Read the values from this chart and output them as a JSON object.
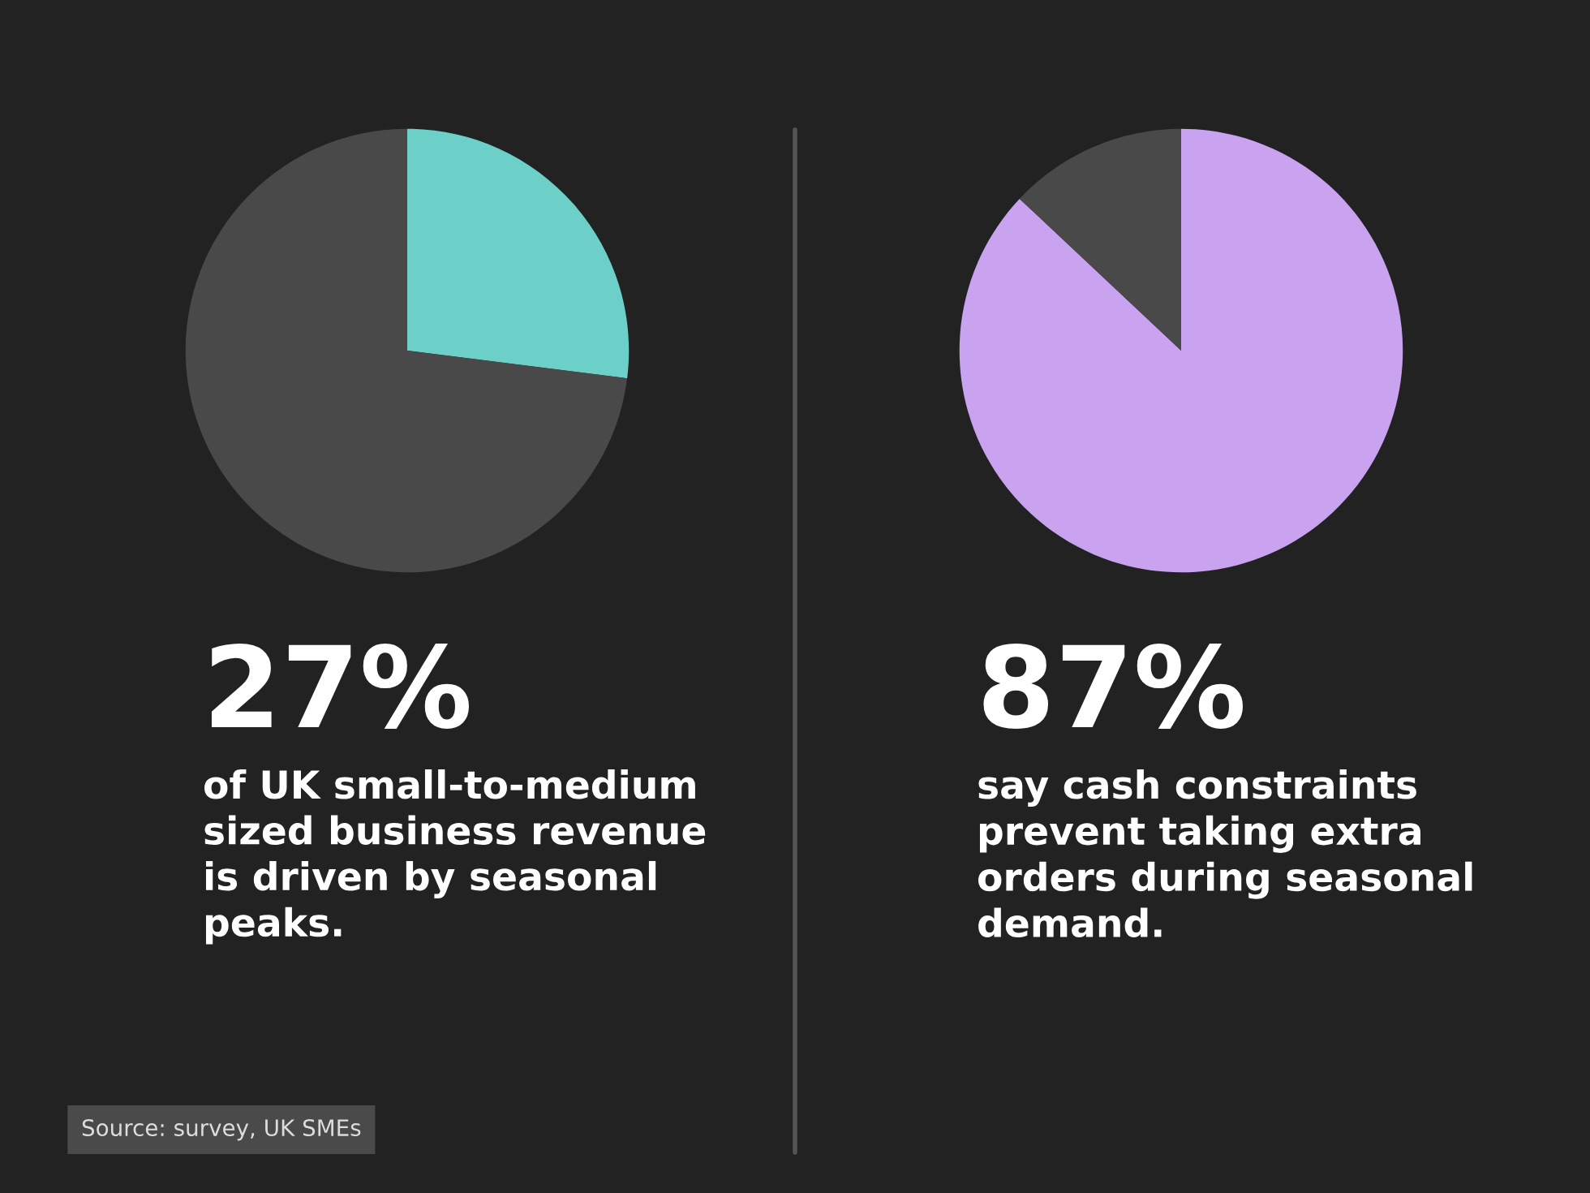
{
  "chart_data": [
    {
      "type": "pie",
      "title": "27%",
      "subtitle": "of UK small-to-medium\nsized business revenue\nis driven by seasonal\npeaks.",
      "categories": [
        null,
        null
      ],
      "values": [
        27,
        73
      ],
      "colors": [
        "#6ccfc8",
        "#494949"
      ],
      "legend": false,
      "annotations": [
        "Source: survey, UK SMEs"
      ]
    },
    {
      "type": "pie",
      "title": "87%",
      "subtitle": "say cash constraints\nprevent taking extra\norders during seasonal\ndemand.",
      "categories": [
        null,
        null
      ],
      "values": [
        87,
        13
      ],
      "colors": [
        "#c9a3ef",
        "#494949"
      ],
      "legend": false
    }
  ]
}
